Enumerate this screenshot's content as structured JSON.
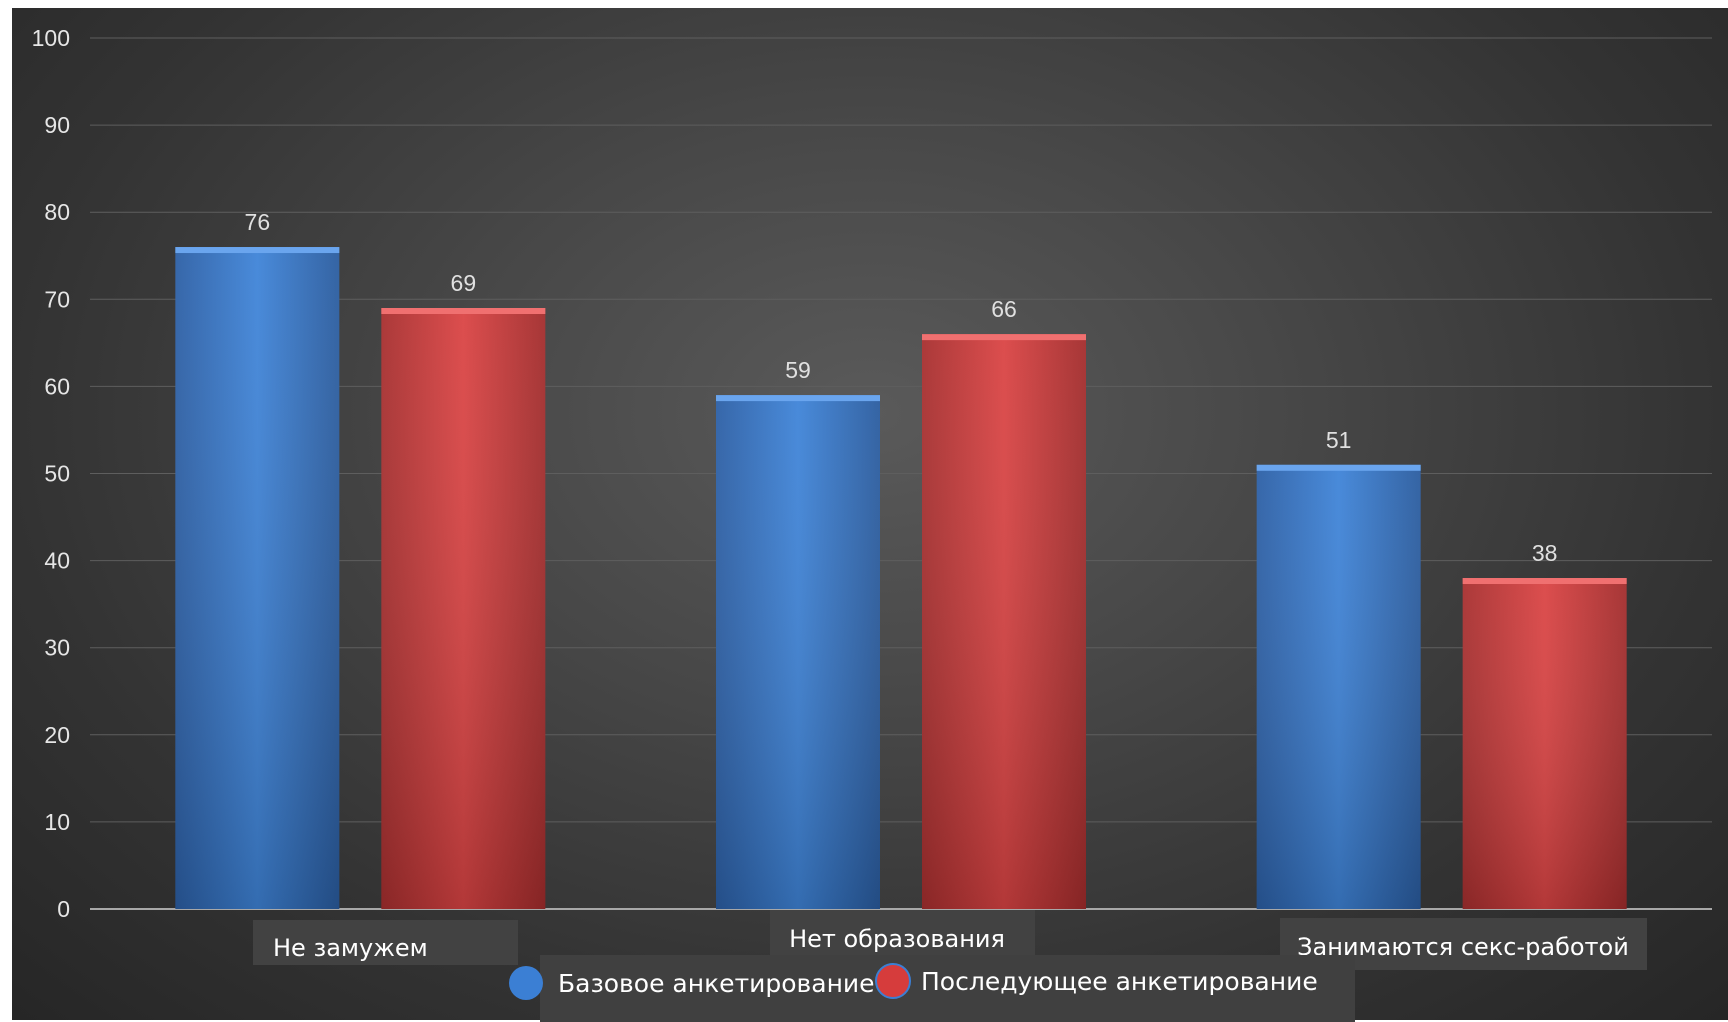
{
  "chart_data": {
    "type": "bar",
    "categories": [
      "Не замужем",
      "Нет образования",
      "Занимаются секс-работой"
    ],
    "series": [
      {
        "name": "Базовое анкетирование",
        "values": [
          76,
          59,
          51
        ]
      },
      {
        "name": "Последующее анкетирование",
        "values": [
          69,
          66,
          38
        ]
      }
    ],
    "ylim": [
      0,
      100
    ],
    "yticks": [
      0,
      10,
      20,
      30,
      40,
      50,
      60,
      70,
      80,
      90,
      100
    ],
    "grid": true,
    "legend": "bottom",
    "colors": {
      "series1": "#3b7fd4",
      "series2": "#d63c3c",
      "background": "#3c3c3c",
      "grid": "#5e5e5e"
    }
  }
}
